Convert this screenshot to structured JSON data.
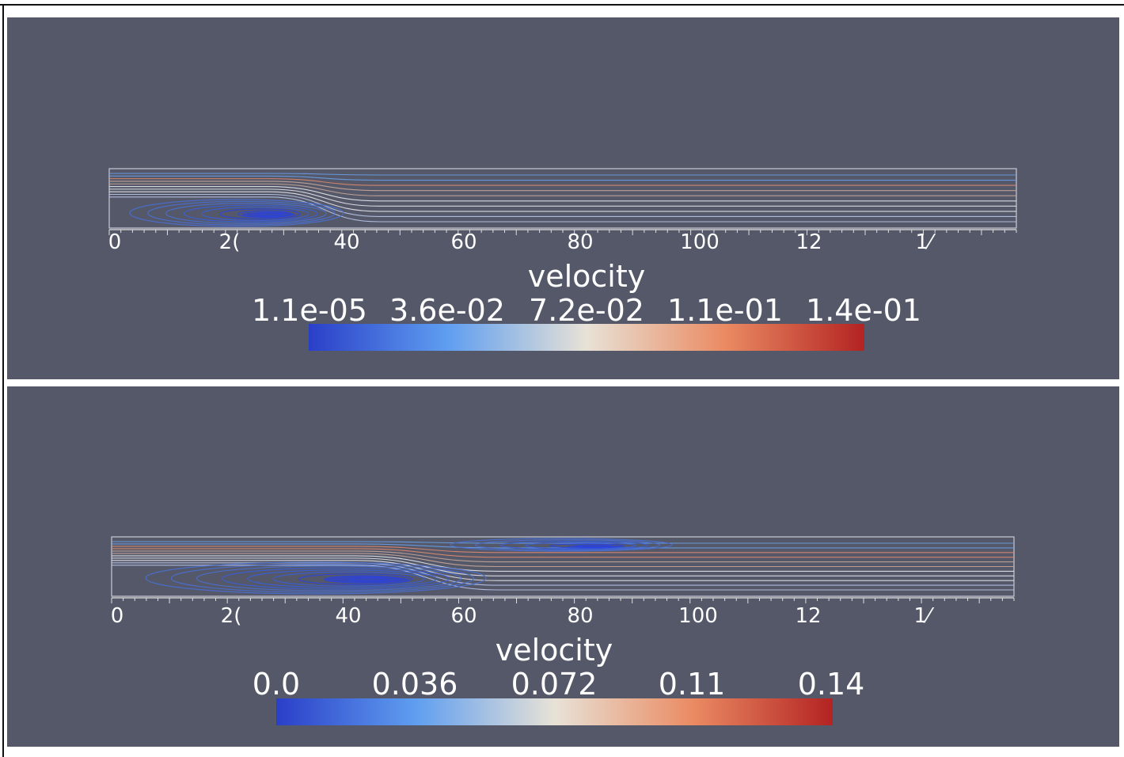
{
  "colors": {
    "background": "#545869",
    "streamline_low": "#2b3fd0",
    "streamline_mid": "#dcdcdc",
    "streamline_high": "#b8402e"
  },
  "panels": [
    {
      "id": "top",
      "field_label": "velocity",
      "axis_ticks": [
        "0",
        "2(",
        "40",
        "60",
        "80",
        "100",
        "12",
        "1⁄"
      ],
      "legend_labels": [
        "1.1e-05",
        "3.6e-02",
        "7.2e-02",
        "1.1e-01",
        "1.4e-01"
      ],
      "colormap": "cool-to-warm",
      "range": [
        1.1e-05,
        0.14
      ]
    },
    {
      "id": "bottom",
      "field_label": "velocity",
      "axis_ticks": [
        "0",
        "2(",
        "40",
        "60",
        "80",
        "100",
        "12",
        "1⁄"
      ],
      "legend_labels": [
        "0.0",
        "0.036",
        "0.072",
        "0.11",
        "0.14"
      ],
      "colormap": "cool-to-warm",
      "range": [
        0.0,
        0.14
      ]
    }
  ]
}
